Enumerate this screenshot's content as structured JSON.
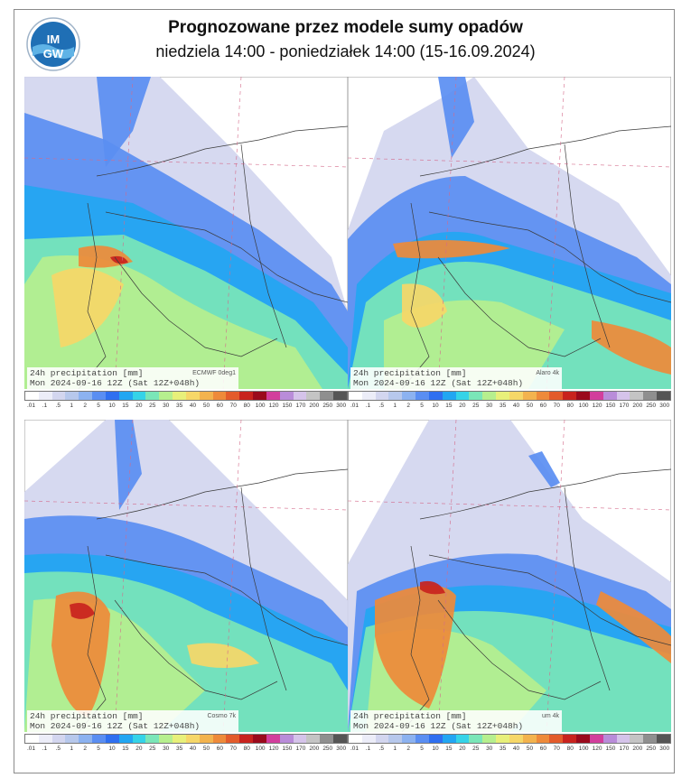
{
  "header": {
    "title": "Prognozowane przez modele sumy opadów",
    "subtitle": "niedziela 14:00 - poniedziałek 14:00 (15-16.09.2024)",
    "logo_text": "IMGW"
  },
  "panels": [
    {
      "line1": "24h precipitation  [mm]",
      "model": "ECMWF 0deg1",
      "line2": "Mon 2024-09-16 12Z (Sat 12Z+048h)"
    },
    {
      "line1": "24h precipitation  [mm]",
      "model": "Alaro 4k",
      "line2": "Mon 2024-09-16 12Z (Sat 12Z+048h)"
    },
    {
      "line1": "24h precipitation  [mm]",
      "model": "Cosmo 7k",
      "line2": "Mon 2024-09-16 12Z (Sat 12Z+048h)"
    },
    {
      "line1": "24h precipitation  [mm]",
      "model": "um 4k",
      "line2": "Mon 2024-09-16 12Z (Sat 12Z+048h)"
    }
  ],
  "scale": {
    "labels": [
      ".01",
      ".1",
      ".5",
      "1",
      "2",
      "5",
      "10",
      "15",
      "20",
      "25",
      "30",
      "35",
      "40",
      "50",
      "60",
      "70",
      "80",
      "100",
      "120",
      "150",
      "170",
      "200",
      "250",
      "300"
    ],
    "colors": [
      "#ffffff",
      "#ecedf8",
      "#d3d6ef",
      "#b7c8ec",
      "#8cb2f0",
      "#5a8ef2",
      "#2f6ff0",
      "#22a6f2",
      "#35d3e8",
      "#7ae6b8",
      "#b6ef8e",
      "#e8f07a",
      "#f6d768",
      "#f3b34e",
      "#ee8a3a",
      "#e35b2b",
      "#c8231e",
      "#9a0a1c",
      "#d23e9c",
      "#b98cd9",
      "#d5c3ea",
      "#c4c4c4",
      "#8f8f8f",
      "#555555"
    ]
  },
  "colors": {
    "border": "#8a8a8a",
    "background": "#ffffff"
  }
}
